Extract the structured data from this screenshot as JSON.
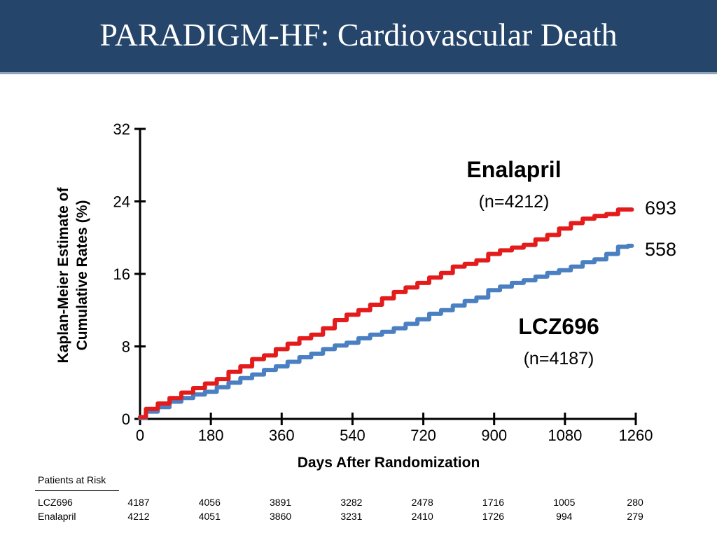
{
  "slide": {
    "title": "PARADIGM-HF: Cardiovascular Death"
  },
  "colors": {
    "header_bg": "#25456b",
    "enalapril": "#e31b1b",
    "lcz696": "#4a7fc2"
  },
  "chart_data": {
    "type": "line",
    "xlabel": "Days After Randomization",
    "ylabel_lines": [
      "Kaplan-Meier Estimate of",
      "Cumulative Rates (%)"
    ],
    "xlim": [
      0,
      1260
    ],
    "ylim": [
      0,
      32
    ],
    "x_ticks": [
      0,
      180,
      360,
      540,
      720,
      900,
      1080,
      1260
    ],
    "y_ticks": [
      0,
      8,
      16,
      24,
      32
    ],
    "grid": false,
    "series": [
      {
        "name": "Enalapril",
        "n_label": "(n=4212)",
        "end_label": "693",
        "color": "#e31b1b",
        "x": [
          0,
          30,
          60,
          90,
          120,
          150,
          180,
          210,
          240,
          270,
          300,
          330,
          360,
          390,
          420,
          450,
          480,
          510,
          540,
          570,
          600,
          630,
          660,
          690,
          720,
          750,
          780,
          810,
          840,
          870,
          900,
          930,
          960,
          990,
          1020,
          1050,
          1080,
          1110,
          1140,
          1170,
          1200,
          1230,
          1250
        ],
        "y": [
          0.2,
          1.1,
          1.7,
          2.3,
          2.9,
          3.4,
          3.9,
          4.4,
          5.2,
          5.8,
          6.6,
          7.0,
          7.7,
          8.3,
          8.9,
          9.3,
          10.0,
          10.9,
          11.5,
          12.0,
          12.6,
          13.3,
          14.0,
          14.5,
          15.0,
          15.6,
          16.1,
          16.8,
          17.1,
          17.5,
          18.2,
          18.6,
          18.9,
          19.2,
          19.8,
          20.3,
          21.0,
          21.6,
          22.1,
          22.4,
          22.6,
          23.1,
          23.1
        ]
      },
      {
        "name": "LCZ696",
        "n_label": "(n=4187)",
        "end_label": "558",
        "color": "#4a7fc2",
        "x": [
          0,
          30,
          60,
          90,
          120,
          150,
          180,
          210,
          240,
          270,
          300,
          330,
          360,
          390,
          420,
          450,
          480,
          510,
          540,
          570,
          600,
          630,
          660,
          690,
          720,
          750,
          780,
          810,
          840,
          870,
          900,
          930,
          960,
          990,
          1020,
          1050,
          1080,
          1110,
          1140,
          1170,
          1200,
          1230,
          1250
        ],
        "y": [
          0.1,
          0.8,
          1.3,
          1.9,
          2.3,
          2.7,
          3.0,
          3.5,
          4.0,
          4.5,
          4.9,
          5.4,
          5.8,
          6.3,
          6.8,
          7.2,
          7.7,
          8.1,
          8.4,
          8.9,
          9.3,
          9.6,
          10.0,
          10.5,
          11.0,
          11.6,
          12.0,
          12.5,
          13.0,
          13.4,
          14.2,
          14.6,
          15.0,
          15.3,
          15.7,
          16.1,
          16.4,
          16.8,
          17.3,
          17.6,
          18.2,
          19.0,
          19.1
        ]
      }
    ]
  },
  "patients_at_risk": {
    "title": "Patients at Risk",
    "rows": [
      {
        "name": "LCZ696",
        "values": [
          "4187",
          "4056",
          "3891",
          "3282",
          "2478",
          "1716",
          "1005",
          "280"
        ]
      },
      {
        "name": "Enalapril",
        "values": [
          "4212",
          "4051",
          "3860",
          "3231",
          "2410",
          "1726",
          "994",
          "279"
        ]
      }
    ]
  }
}
